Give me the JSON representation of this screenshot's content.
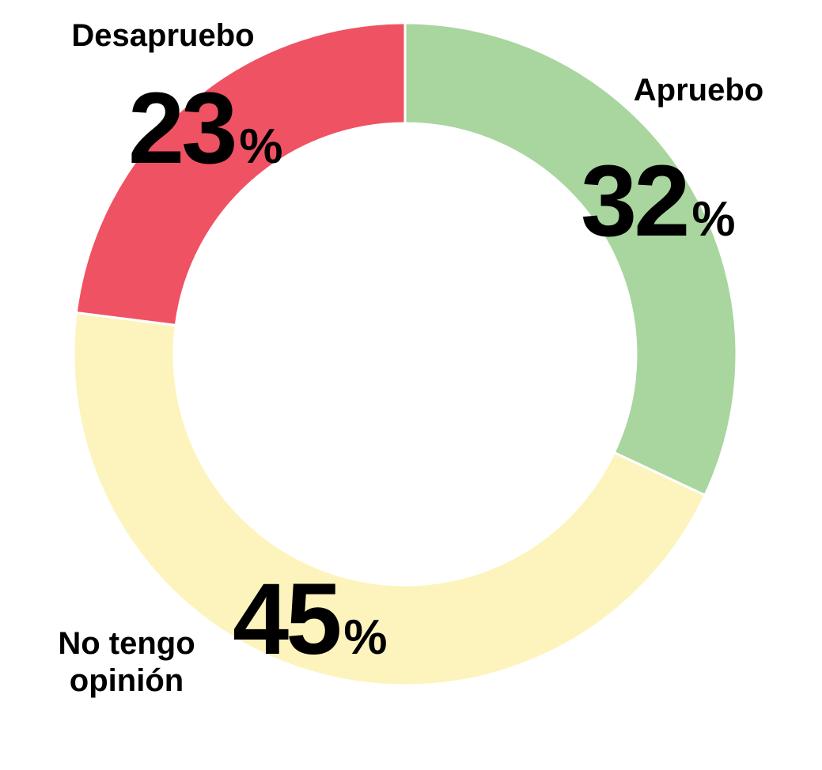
{
  "chart_data": {
    "type": "pie",
    "donut": true,
    "unit": "%",
    "slices": [
      {
        "label": "Apruebo",
        "value": 32,
        "color": "#a9d59e"
      },
      {
        "label": "No tengo opinión",
        "label_lines": [
          "No tengo",
          "opinión"
        ],
        "value": 45,
        "color": "#fdf4bd"
      },
      {
        "label": "Desapruebo",
        "value": 23,
        "color": "#ef5263"
      }
    ]
  }
}
